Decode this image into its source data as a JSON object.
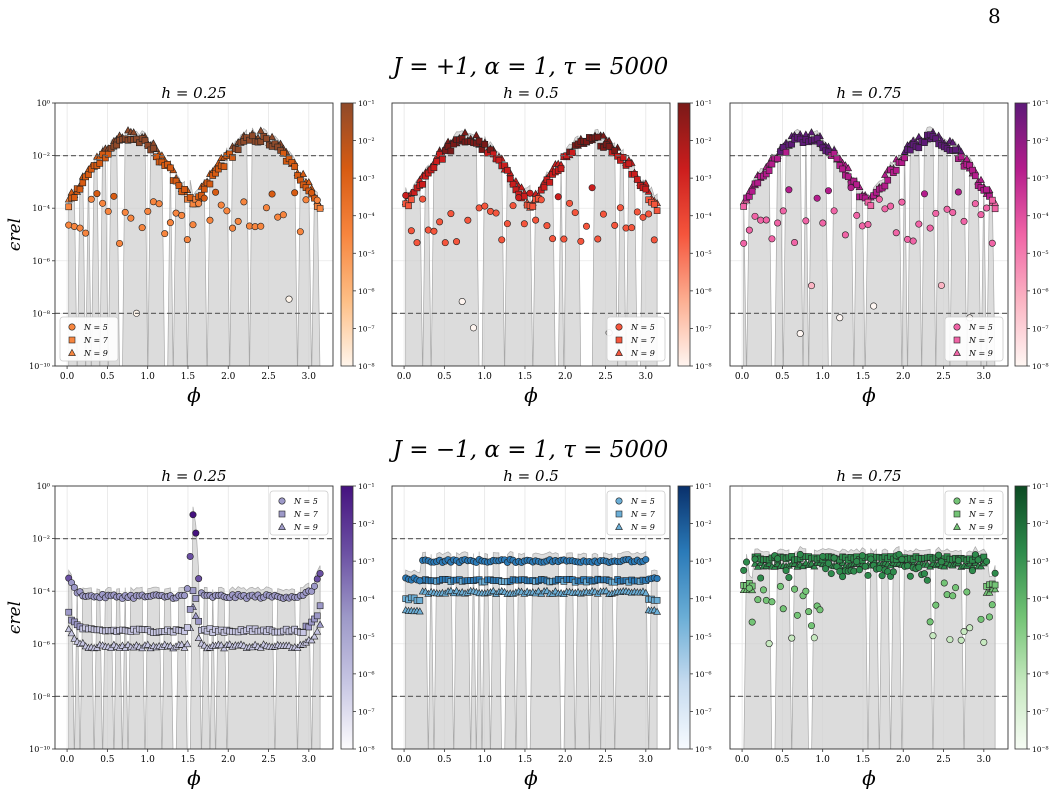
{
  "page_number": "8",
  "rows": [
    {
      "title": "J = +1, α = 1, τ = 5000",
      "J": 1
    },
    {
      "title": "J = −1, α = 1, τ = 5000",
      "J": -1
    }
  ],
  "x_label": "ϕ",
  "y_label": "ϵrel",
  "x_ticks": [
    "0.0",
    "0.5",
    "1.0",
    "1.5",
    "2.0",
    "2.5",
    "3.0"
  ],
  "y_ticks": [
    "10⁰",
    "10⁻²",
    "10⁻⁴",
    "10⁻⁶",
    "10⁻⁸",
    "10⁻¹⁰"
  ],
  "colorbar_ticks": [
    "10⁻¹",
    "10⁻²",
    "10⁻³",
    "10⁻⁴",
    "10⁻⁵",
    "10⁻⁶",
    "10⁻⁷",
    "10⁻⁸"
  ],
  "legend_labels": [
    "N = 5",
    "N = 7",
    "N = 9"
  ],
  "chart_data": [
    {
      "type": "scatter",
      "row": 0,
      "h": 0.25,
      "title": "h = 0.25",
      "cmap": [
        "#fff5eb",
        "#fdbe85",
        "#f7853e",
        "#d75b12",
        "#8f4a2a"
      ],
      "xlim": [
        -0.15,
        3.3
      ],
      "ylim_log10": [
        -10,
        0
      ],
      "reference_lines_log10": [
        -2,
        -8
      ],
      "legend_position": "lower-left"
    },
    {
      "type": "scatter",
      "row": 0,
      "h": 0.5,
      "title": "h = 0.5",
      "cmap": [
        "#fff5f0",
        "#fcae91",
        "#f5553c",
        "#cb1d1d",
        "#7a1a18"
      ],
      "xlim": [
        -0.15,
        3.3
      ],
      "ylim_log10": [
        -10,
        0
      ],
      "reference_lines_log10": [
        -2,
        -8
      ],
      "legend_position": "lower-right"
    },
    {
      "type": "scatter",
      "row": 0,
      "h": 0.75,
      "title": "h = 0.75",
      "cmap": [
        "#fff7f3",
        "#fbb4c3",
        "#f064a6",
        "#b41c8c",
        "#5e1a78"
      ],
      "xlim": [
        -0.15,
        3.3
      ],
      "ylim_log10": [
        -10,
        0
      ],
      "reference_lines_log10": [
        -2,
        -8
      ],
      "legend_position": "lower-right"
    },
    {
      "type": "scatter",
      "row": 1,
      "h": 0.25,
      "title": "h = 0.25",
      "cmap": [
        "#fcfbfd",
        "#c7c6e3",
        "#9d99c8",
        "#6b50a3",
        "#45127f"
      ],
      "xlim": [
        -0.15,
        3.3
      ],
      "ylim_log10": [
        -10,
        0
      ],
      "reference_lines_log10": [
        -2,
        -8
      ],
      "legend_position": "upper-right"
    },
    {
      "type": "scatter",
      "row": 1,
      "h": 0.5,
      "title": "h = 0.5",
      "cmap": [
        "#f7fbff",
        "#c6dbef",
        "#6baed6",
        "#2a7ab8",
        "#09306b"
      ],
      "xlim": [
        -0.15,
        3.3
      ],
      "ylim_log10": [
        -10,
        0
      ],
      "reference_lines_log10": [
        -2,
        -8
      ],
      "legend_position": "upper-right"
    },
    {
      "type": "scatter",
      "row": 1,
      "h": 0.75,
      "title": "h = 0.75",
      "cmap": [
        "#f7fcf5",
        "#c7e9c0",
        "#74c476",
        "#2e8b4c",
        "#0c4a23"
      ],
      "xlim": [
        -0.15,
        3.3
      ],
      "ylim_log10": [
        -10,
        0
      ],
      "reference_lines_log10": [
        -2,
        -8
      ],
      "legend_position": "upper-right"
    }
  ]
}
